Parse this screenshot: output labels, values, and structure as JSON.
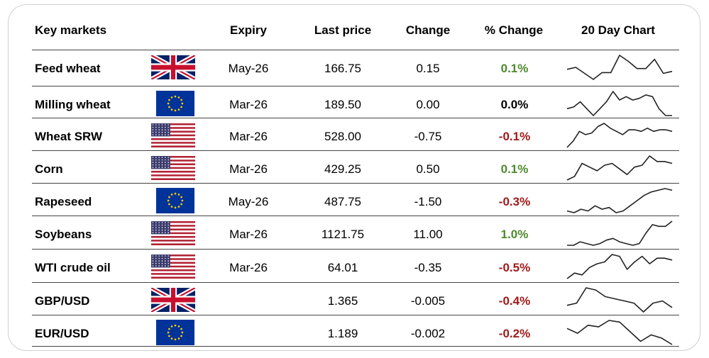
{
  "header": {
    "market": "Key markets",
    "expiry": "Expiry",
    "last_price": "Last price",
    "change": "Change",
    "pct_change": "% Change",
    "chart": "20 Day Chart"
  },
  "colors": {
    "positive": "#4e8a2f",
    "neutral": "#000000",
    "negative": "#a11a1a"
  },
  "rows": [
    {
      "name": "Feed wheat",
      "flag": "uk-flag-icon",
      "expiry": "May-26",
      "price": "166.75",
      "change": "0.15",
      "pct": "0.1%",
      "dir": "positive",
      "trend": [
        4,
        4.5,
        3,
        1.5,
        3.2,
        3.2,
        7.5,
        6,
        4.2,
        4.2,
        6.5,
        3,
        3.5
      ]
    },
    {
      "name": "Milling wheat",
      "flag": "eu-flag-icon",
      "expiry": "Mar-26",
      "price": "189.50",
      "change": "0.00",
      "pct": "0.0%",
      "dir": "neutral",
      "trend": [
        3,
        3.5,
        5,
        3,
        1,
        3,
        5,
        8,
        5.5,
        6.5,
        5.5,
        6,
        7,
        6.5,
        3,
        1,
        1
      ]
    },
    {
      "name": "Wheat SRW",
      "flag": "us-flag-icon",
      "expiry": "Mar-26",
      "price": "528.00",
      "change": "-0.75",
      "pct": "-0.1%",
      "dir": "negative",
      "trend": [
        1,
        3,
        6,
        5,
        5.5,
        7.5,
        8.5,
        7,
        6,
        5,
        6.5,
        6.5,
        6,
        7,
        6,
        6.5,
        6.5,
        6
      ]
    },
    {
      "name": "Corn",
      "flag": "us-flag-icon",
      "expiry": "Mar-26",
      "price": "429.25",
      "change": "0.50",
      "pct": "0.1%",
      "dir": "positive",
      "trend": [
        1.5,
        2.5,
        6,
        5,
        4,
        5.5,
        6,
        4.5,
        3,
        5,
        5.5,
        8,
        6.5,
        6.5,
        6
      ]
    },
    {
      "name": "Rapeseed",
      "flag": "eu-flag-icon",
      "expiry": "May-26",
      "price": "487.75",
      "change": "-1.50",
      "pct": "-0.3%",
      "dir": "negative",
      "trend": [
        2,
        1.5,
        2.5,
        2,
        3.5,
        2.5,
        3,
        1.5,
        2,
        3.5,
        5,
        6.5,
        7.5,
        8,
        8.5,
        8
      ]
    },
    {
      "name": "Soybeans",
      "flag": "us-flag-icon",
      "expiry": "Mar-26",
      "price": "1121.75",
      "change": "11.00",
      "pct": "1.0%",
      "dir": "positive",
      "trend": [
        1.5,
        1.5,
        2.5,
        2,
        1.5,
        2,
        3,
        3.5,
        2.5,
        2,
        1.5,
        2,
        5,
        7.5,
        7,
        7,
        8.5
      ]
    },
    {
      "name": "WTI crude oil",
      "flag": "us-flag-icon",
      "expiry": "Mar-26",
      "price": "64.01",
      "change": "-0.35",
      "pct": "-0.5%",
      "dir": "negative",
      "trend": [
        1.5,
        3,
        2.5,
        4.5,
        5.5,
        6,
        8,
        7.5,
        4,
        6,
        7.5,
        5.5,
        7,
        7,
        6.5
      ]
    },
    {
      "name": "GBP/USD",
      "flag": "uk-flag-icon",
      "expiry": "",
      "price": "1.365",
      "change": "-0.005",
      "pct": "-0.4%",
      "dir": "negative",
      "trend": [
        3,
        3.5,
        7,
        6.5,
        5,
        4.5,
        4,
        3.5,
        1.5,
        3.5,
        4,
        2.5
      ]
    },
    {
      "name": "EUR/USD",
      "flag": "eu-flag-icon",
      "expiry": "",
      "price": "1.189",
      "change": "-0.002",
      "pct": "-0.2%",
      "dir": "negative",
      "trend": [
        5,
        3.5,
        6,
        5.5,
        7.5,
        7,
        4,
        1,
        3,
        2,
        0
      ]
    }
  ]
}
